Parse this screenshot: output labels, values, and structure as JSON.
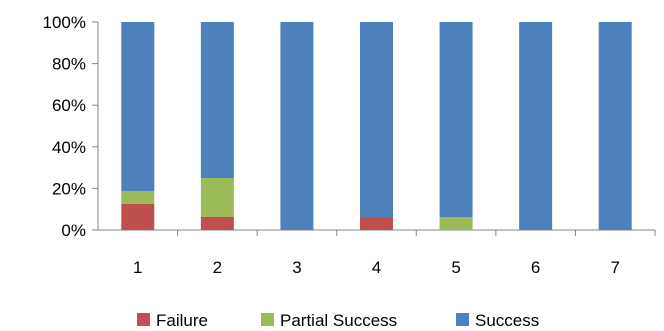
{
  "chart_data": {
    "type": "bar",
    "stacked": "percent",
    "title": "",
    "xlabel": "",
    "ylabel": "",
    "categories": [
      "1",
      "2",
      "3",
      "4",
      "5",
      "6",
      "7"
    ],
    "ylim": [
      0,
      100
    ],
    "yticks": [
      "0%",
      "20%",
      "40%",
      "60%",
      "80%",
      "100%"
    ],
    "grid": false,
    "legend_position": "bottom",
    "series": [
      {
        "name": "Failure",
        "color": "#c0504d",
        "values": [
          12.5,
          6.25,
          0,
          6.25,
          0,
          0,
          0
        ]
      },
      {
        "name": "Partial Success",
        "color": "#9bbb59",
        "values": [
          6.25,
          18.75,
          0,
          0,
          6.25,
          0,
          0
        ]
      },
      {
        "name": "Success",
        "color": "#4f81bd",
        "values": [
          81.25,
          75,
          100,
          93.75,
          93.75,
          100,
          100
        ]
      }
    ]
  }
}
